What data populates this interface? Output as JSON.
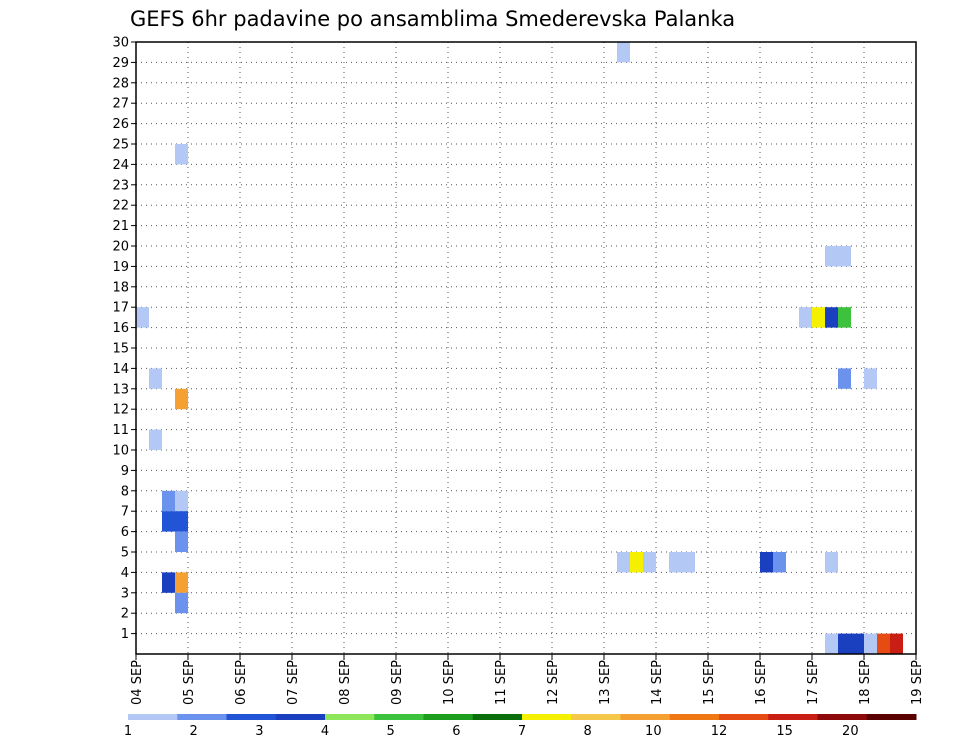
{
  "chart_data": {
    "type": "heatmap",
    "title": "GEFS 6hr padavine po ansamblima Smederevska Palanka",
    "x_tick_labels": [
      "04 SEP",
      "05 SEP",
      "06 SEP",
      "07 SEP",
      "08 SEP",
      "09 SEP",
      "10 SEP",
      "11 SEP",
      "12 SEP",
      "13 SEP",
      "14 SEP",
      "15 SEP",
      "16 SEP",
      "17 SEP",
      "18 SEP",
      "19 SEP"
    ],
    "y_tick_labels": [
      1,
      2,
      3,
      4,
      5,
      6,
      7,
      8,
      9,
      10,
      11,
      12,
      13,
      14,
      15,
      16,
      17,
      18,
      19,
      20,
      21,
      22,
      23,
      24,
      25,
      26,
      27,
      28,
      29,
      30
    ],
    "xlim": [
      0,
      60
    ],
    "ylim": [
      0,
      30
    ],
    "x_unit": "6-hour steps from 04 SEP 00Z",
    "y_unit": "ensemble member",
    "grid": true,
    "colorbar": {
      "position": "bottom",
      "tick_labels": [
        "1",
        "2",
        "3",
        "4",
        "5",
        "6",
        "7",
        "8",
        "10",
        "12",
        "15",
        "20"
      ],
      "colors": [
        "#b4c8f5",
        "#6b93ee",
        "#2155d6",
        "#1a3fbf",
        "#8ee65a",
        "#3cc23c",
        "#1e9e1e",
        "#0a6e0a",
        "#f5f000",
        "#f5c84b",
        "#f5a032",
        "#f07814",
        "#e64b14",
        "#c81e14",
        "#8c0a0a",
        "#5a0000"
      ]
    },
    "cells": [
      {
        "t": 38,
        "m": 30,
        "c": "#b4c8f5"
      },
      {
        "t": 4,
        "m": 25,
        "c": "#b4c8f5"
      },
      {
        "t": 54,
        "m": 20,
        "c": "#b4c8f5"
      },
      {
        "t": 55,
        "m": 20,
        "c": "#b4c8f5"
      },
      {
        "t": 1,
        "m": 17,
        "c": "#b4c8f5"
      },
      {
        "t": 52,
        "m": 17,
        "c": "#b4c8f5"
      },
      {
        "t": 53,
        "m": 17,
        "c": "#f5f000"
      },
      {
        "t": 54,
        "m": 17,
        "c": "#1a3fbf"
      },
      {
        "t": 55,
        "m": 17,
        "c": "#3cc23c"
      },
      {
        "t": 2,
        "m": 14,
        "c": "#b4c8f5"
      },
      {
        "t": 55,
        "m": 14,
        "c": "#6b93ee"
      },
      {
        "t": 57,
        "m": 14,
        "c": "#b4c8f5"
      },
      {
        "t": 4,
        "m": 13,
        "c": "#f5a032"
      },
      {
        "t": 2,
        "m": 11,
        "c": "#b4c8f5"
      },
      {
        "t": 3,
        "m": 8,
        "c": "#6b93ee"
      },
      {
        "t": 4,
        "m": 8,
        "c": "#b4c8f5"
      },
      {
        "t": 3,
        "m": 7,
        "c": "#2155d6"
      },
      {
        "t": 4,
        "m": 7,
        "c": "#2155d6"
      },
      {
        "t": 4,
        "m": 6,
        "c": "#6b93ee"
      },
      {
        "t": 38,
        "m": 5,
        "c": "#b4c8f5"
      },
      {
        "t": 39,
        "m": 5,
        "c": "#f5f000"
      },
      {
        "t": 40,
        "m": 5,
        "c": "#b4c8f5"
      },
      {
        "t": 42,
        "m": 5,
        "c": "#b4c8f5"
      },
      {
        "t": 43,
        "m": 5,
        "c": "#b4c8f5"
      },
      {
        "t": 49,
        "m": 5,
        "c": "#1a3fbf"
      },
      {
        "t": 50,
        "m": 5,
        "c": "#6b93ee"
      },
      {
        "t": 54,
        "m": 5,
        "c": "#b4c8f5"
      },
      {
        "t": 3,
        "m": 4,
        "c": "#1a3fbf"
      },
      {
        "t": 4,
        "m": 4,
        "c": "#f5a032"
      },
      {
        "t": 4,
        "m": 3,
        "c": "#6b93ee"
      },
      {
        "t": 54,
        "m": 1,
        "c": "#b4c8f5"
      },
      {
        "t": 55,
        "m": 1,
        "c": "#1a3fbf"
      },
      {
        "t": 56,
        "m": 1,
        "c": "#1a3fbf"
      },
      {
        "t": 57,
        "m": 1,
        "c": "#b4c8f5"
      },
      {
        "t": 58,
        "m": 1,
        "c": "#e64b14"
      },
      {
        "t": 59,
        "m": 1,
        "c": "#c81e14"
      }
    ]
  }
}
